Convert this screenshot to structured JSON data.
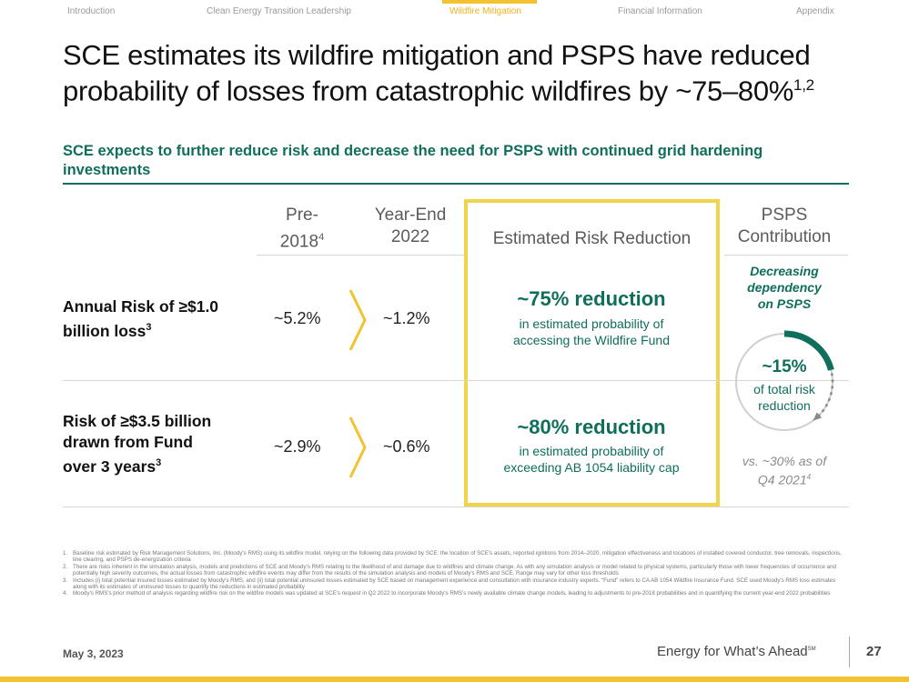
{
  "nav": {
    "items": [
      "Introduction",
      "Clean Energy Transition Leadership",
      "Wildfire Mitigation",
      "Financial Information",
      "Appendix"
    ],
    "active": "Wildfire Mitigation"
  },
  "title": {
    "line1": "SCE estimates its wildfire mitigation and PSPS have reduced",
    "line2": "probability of losses from catastrophic wildfires by ~75–80%",
    "sup": "1,2"
  },
  "subtitle": "SCE expects to further reduce risk and decrease the need for PSPS with continued grid hardening investments",
  "columns": {
    "pre_line1": "Pre-",
    "pre_line2": "2018",
    "pre_sup": "4",
    "ye_line1": "Year-End",
    "ye_line2": "2022",
    "reduction": "Estimated Risk Reduction",
    "psps_line1": "PSPS",
    "psps_line2": "Contribution"
  },
  "rows": [
    {
      "label_line1": "Annual Risk of ≥$1.0",
      "label_line2": "billion loss",
      "label_sup": "3",
      "pre": "~5.2%",
      "ye": "~1.2%",
      "reduction_big": "~75% reduction",
      "reduction_line1": "in estimated probability of",
      "reduction_line2": "accessing the Wildfire Fund"
    },
    {
      "label_line1": "Risk of ≥$3.5 billion",
      "label_line2": "drawn from Fund",
      "label_line3": "over 3 years",
      "label_sup": "3",
      "pre": "~2.9%",
      "ye": "~0.6%",
      "reduction_big": "~80% reduction",
      "reduction_line1": "in estimated probability of",
      "reduction_line2": "exceeding AB 1054 liability cap"
    }
  ],
  "psps": {
    "dependency_line1": "Decreasing",
    "dependency_line2": "dependency",
    "dependency_line3": "on PSPS",
    "share_value": 15,
    "share_label": "~15%",
    "share_text_line1": "of total risk",
    "share_text_line2": "reduction",
    "vs_line1": "vs. ~30% as of",
    "vs_line2": "Q4 2021",
    "vs_sup": "4"
  },
  "footnotes": [
    {
      "num": "1.",
      "text": "Baseline risk estimated by Risk Management Solutions, Inc. (Moody's RMS) using its wildfire model, relying on the following data provided by SCE: the location of SCE's assets, reported ignitions from 2014–2020, mitigation effectiveness and locations of installed covered conductor, tree removals, inspections, line clearing, and PSPS de-energization criteria"
    },
    {
      "num": "2.",
      "text": "There are risks inherent in the simulation analysis, models and predictions of SCE and Moody's RMS relating to the likelihood of and damage due to wildfires and climate change. As with any simulation analysis or model related to physical systems, particularly those with lower frequencies of occurrence and potentially high severity outcomes, the actual losses from catastrophic wildfire events may differ from the results of the simulation analysis and models of Moody's RMS and SCE. Range may vary for other loss thresholds"
    },
    {
      "num": "3.",
      "text": "Includes (i) total potential insured losses estimated by Moody's RMS, and (ii) total potential uninsured losses estimated by SCE based on management experience and consultation with insurance industry experts. “Fund” refers to CA AB 1054 Wildfire Insurance Fund. SCE used Moody's RMS loss estimates along with its estimates of uninsured losses to quantify the reductions in estimated probability"
    },
    {
      "num": "4.",
      "text": "Moody's RMS's prior method of analysis regarding wildfire risk on the wildfire models was updated at SCE's request in Q2 2022 to incorporate Moody's RMS's newly available climate change models, leading to adjustments to pre-2018 probabilities and in quantifying the current year-end 2022 probabilities"
    }
  ],
  "footer": {
    "date": "May 3, 2023",
    "tagline": "Energy for What’s Ahead",
    "tagline_mark": "SM",
    "page": "27"
  },
  "colors": {
    "accent_yellow": "#f2c230",
    "brand_green": "#0f6e5c",
    "box_yellow": "#f2d44a"
  }
}
